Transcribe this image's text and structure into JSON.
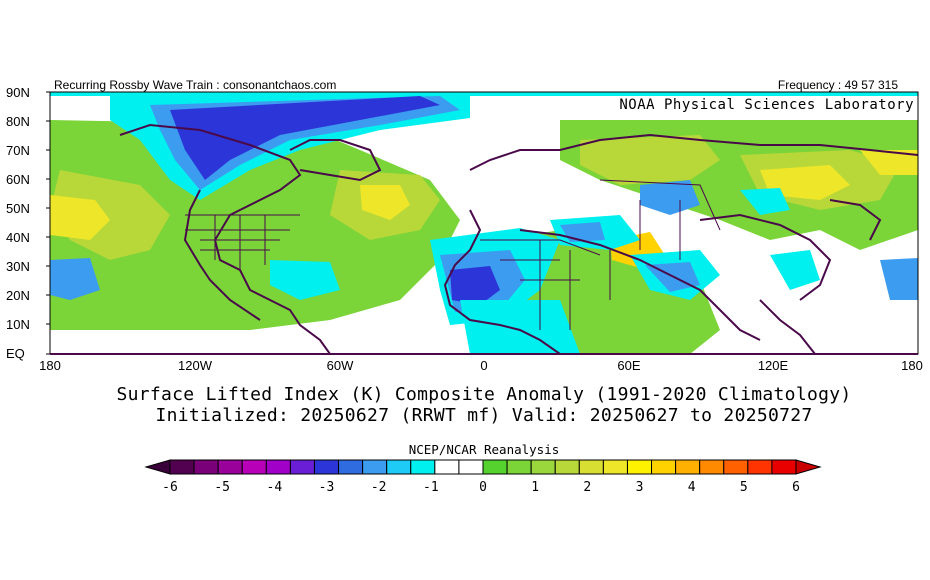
{
  "header": {
    "left": "Recurring Rossby Wave Train : consonantchaos.com",
    "right": "Frequency : 49 57 315",
    "lab": "NOAA Physical Sciences Laboratory"
  },
  "lat_labels": [
    "90N",
    "80N",
    "70N",
    "60N",
    "50N",
    "40N",
    "30N",
    "20N",
    "10N",
    "EQ"
  ],
  "lon_labels": [
    "180",
    "120W",
    "60W",
    "0",
    "60E",
    "120E",
    "180"
  ],
  "title": {
    "line1": "Surface Lifted Index (K) Composite Anomaly (1991-2020 Climatology)",
    "line2": "Initialized: 20250627 (RRWT mf) Valid: 20250627 to 20250727"
  },
  "source": "NCEP/NCAR Reanalysis",
  "colorbar": {
    "labels": [
      "-6",
      "-5",
      "-4",
      "-3",
      "-2",
      "-1",
      "0",
      "1",
      "2",
      "3",
      "4",
      "5",
      "6"
    ],
    "colors": [
      "#520050",
      "#7a007a",
      "#9a009a",
      "#b800b8",
      "#a000c8",
      "#6a1fd6",
      "#2c36d8",
      "#2f6ce0",
      "#3c9cf0",
      "#1ecbf6",
      "#00f0f0",
      "#ffffff",
      "#ffffff",
      "#55d22e",
      "#7bd438",
      "#9ad73d",
      "#b8d83a",
      "#d8de32",
      "#eee628",
      "#fff200",
      "#ffd200",
      "#ffb000",
      "#ff8a00",
      "#ff6000",
      "#ff3400",
      "#e80000"
    ]
  },
  "legend_colors": {
    "strong_negative": "#2c36d8",
    "negative": "#3c9cf0",
    "weak_negative": "#00f0f0",
    "neutral": "#ffffff",
    "weak_positive": "#55d22e",
    "positive": "#9ad73d",
    "strong_positive": "#eee628",
    "stronger_positive": "#ffd200",
    "coast": "#4a0a4a"
  }
}
